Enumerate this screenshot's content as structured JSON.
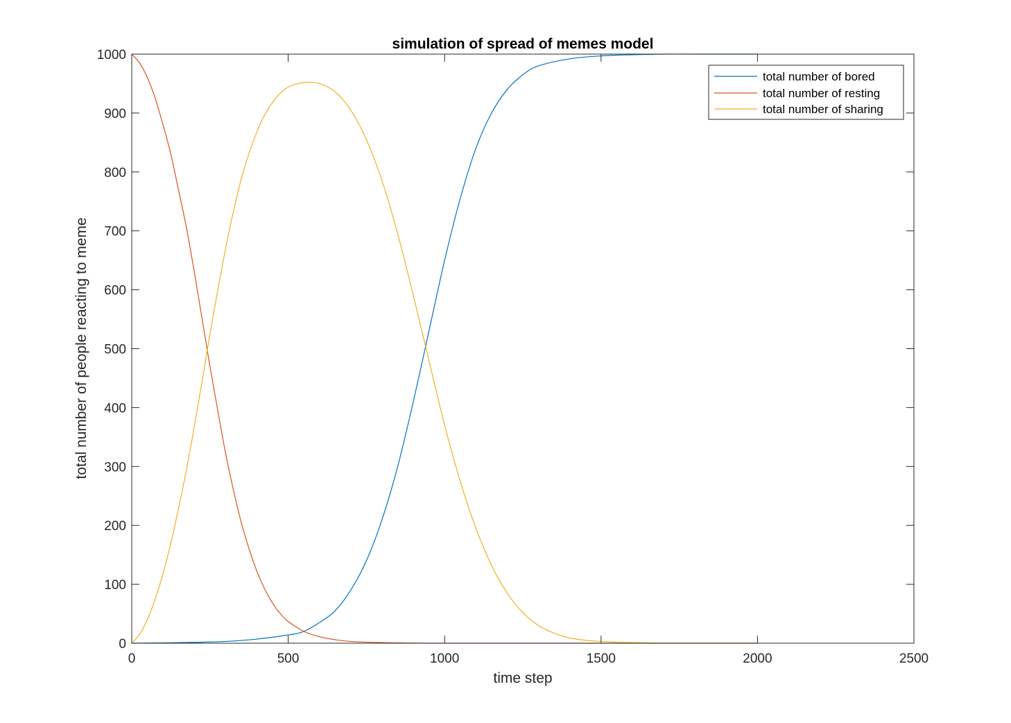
{
  "chart_data": {
    "type": "line",
    "title": "simulation of spread of memes model",
    "xlabel": "time step",
    "ylabel": "total number of people reacting to meme",
    "xlim": [
      0,
      2500
    ],
    "ylim": [
      0,
      1000
    ],
    "xticks": [
      0,
      500,
      1000,
      1500,
      2000,
      2500
    ],
    "yticks": [
      0,
      100,
      200,
      300,
      400,
      500,
      600,
      700,
      800,
      900,
      1000
    ],
    "grid": false,
    "legend_position": "top-right",
    "series": [
      {
        "name": "total number of bored",
        "color": "#0072BD",
        "points": [
          [
            0,
            0
          ],
          [
            100,
            0.5
          ],
          [
            200,
            1.5
          ],
          [
            300,
            3
          ],
          [
            400,
            7
          ],
          [
            500,
            14
          ],
          [
            550,
            20
          ],
          [
            600,
            35
          ],
          [
            650,
            55
          ],
          [
            700,
            90
          ],
          [
            750,
            140
          ],
          [
            800,
            210
          ],
          [
            850,
            300
          ],
          [
            900,
            410
          ],
          [
            950,
            530
          ],
          [
            1000,
            650
          ],
          [
            1050,
            755
          ],
          [
            1100,
            840
          ],
          [
            1150,
            900
          ],
          [
            1200,
            940
          ],
          [
            1250,
            965
          ],
          [
            1300,
            980
          ],
          [
            1400,
            992
          ],
          [
            1500,
            997
          ],
          [
            1600,
            999
          ],
          [
            1700,
            1000
          ],
          [
            1800,
            1000
          ],
          [
            2000,
            1000
          ]
        ]
      },
      {
        "name": "total number of resting",
        "color": "#D95319",
        "points": [
          [
            0,
            1000
          ],
          [
            25,
            985
          ],
          [
            50,
            960
          ],
          [
            75,
            925
          ],
          [
            100,
            880
          ],
          [
            125,
            830
          ],
          [
            150,
            768
          ],
          [
            175,
            705
          ],
          [
            200,
            630
          ],
          [
            225,
            550
          ],
          [
            250,
            470
          ],
          [
            275,
            395
          ],
          [
            300,
            322
          ],
          [
            325,
            260
          ],
          [
            350,
            205
          ],
          [
            375,
            160
          ],
          [
            400,
            122
          ],
          [
            425,
            92
          ],
          [
            450,
            68
          ],
          [
            475,
            50
          ],
          [
            500,
            37
          ],
          [
            550,
            20
          ],
          [
            600,
            11
          ],
          [
            650,
            6
          ],
          [
            700,
            3
          ],
          [
            800,
            1
          ],
          [
            900,
            0.3
          ],
          [
            1000,
            0
          ],
          [
            1500,
            0
          ],
          [
            2000,
            0
          ]
        ]
      },
      {
        "name": "total number of sharing",
        "color": "#EDB120",
        "points": [
          [
            0,
            0
          ],
          [
            25,
            15
          ],
          [
            50,
            40
          ],
          [
            75,
            75
          ],
          [
            100,
            118
          ],
          [
            125,
            170
          ],
          [
            150,
            230
          ],
          [
            175,
            295
          ],
          [
            200,
            368
          ],
          [
            225,
            445
          ],
          [
            250,
            525
          ],
          [
            275,
            600
          ],
          [
            300,
            670
          ],
          [
            325,
            733
          ],
          [
            350,
            788
          ],
          [
            375,
            832
          ],
          [
            400,
            868
          ],
          [
            425,
            897
          ],
          [
            450,
            918
          ],
          [
            475,
            934
          ],
          [
            500,
            944
          ],
          [
            530,
            950
          ],
          [
            560,
            952
          ],
          [
            600,
            950
          ],
          [
            650,
            936
          ],
          [
            700,
            905
          ],
          [
            750,
            855
          ],
          [
            800,
            785
          ],
          [
            850,
            695
          ],
          [
            900,
            590
          ],
          [
            925,
            535
          ],
          [
            950,
            480
          ],
          [
            1000,
            370
          ],
          [
            1050,
            275
          ],
          [
            1100,
            195
          ],
          [
            1150,
            132
          ],
          [
            1200,
            85
          ],
          [
            1250,
            52
          ],
          [
            1300,
            30
          ],
          [
            1350,
            17
          ],
          [
            1400,
            9
          ],
          [
            1450,
            5
          ],
          [
            1500,
            3
          ],
          [
            1600,
            1
          ],
          [
            1700,
            0.3
          ],
          [
            1800,
            0
          ],
          [
            2000,
            0
          ]
        ]
      }
    ]
  }
}
